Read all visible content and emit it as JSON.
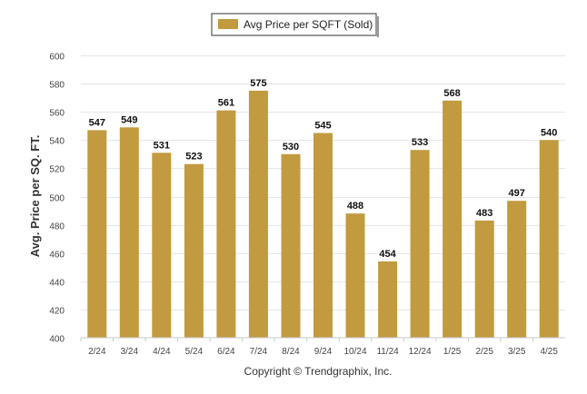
{
  "chart_data": {
    "type": "bar",
    "legend": {
      "label": "Avg Price per SQFT (Sold)",
      "placement": "top-center"
    },
    "ylabel": "Avg. Price per SQ. FT.",
    "xlabel": "",
    "ylim": [
      400,
      600
    ],
    "yticks": [
      400,
      420,
      440,
      460,
      480,
      500,
      520,
      540,
      560,
      580,
      600
    ],
    "grid": true,
    "categories": [
      "2/24",
      "3/24",
      "4/24",
      "5/24",
      "6/24",
      "7/24",
      "8/24",
      "9/24",
      "10/24",
      "11/24",
      "12/24",
      "1/25",
      "2/25",
      "3/25",
      "4/25"
    ],
    "series": [
      {
        "name": "Avg Price per SQFT (Sold)",
        "values": [
          547,
          549,
          531,
          523,
          561,
          575,
          530,
          545,
          488,
          454,
          533,
          568,
          483,
          497,
          540
        ],
        "color": "#c29a3f"
      }
    ],
    "footer": "Copyright © Trendgraphix, Inc."
  }
}
